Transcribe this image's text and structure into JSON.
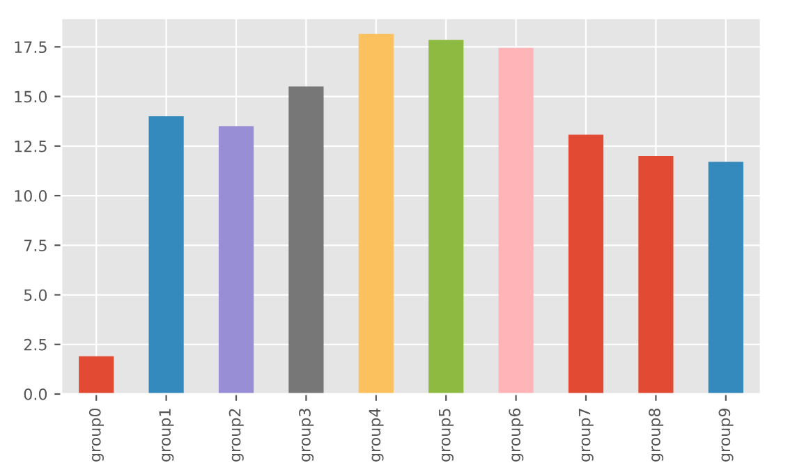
{
  "chart_data": {
    "type": "bar",
    "categories": [
      "group0",
      "group1",
      "group2",
      "group3",
      "group4",
      "group5",
      "group6",
      "group7",
      "group8",
      "group9"
    ],
    "values": [
      1.9,
      14.0,
      13.5,
      15.5,
      18.15,
      17.85,
      17.45,
      13.07,
      12.0,
      11.7
    ],
    "colors": [
      "#e24a33",
      "#348abd",
      "#988ed5",
      "#777777",
      "#fbc15e",
      "#8eba42",
      "#ffb5b8",
      "#e24a33",
      "#e24a33",
      "#348abd"
    ],
    "ylim": [
      0,
      18.95
    ],
    "yticks": [
      {
        "value": 0,
        "label": "0.0"
      },
      {
        "value": 2.5,
        "label": "2.5"
      },
      {
        "value": 5,
        "label": "5.0"
      },
      {
        "value": 7.5,
        "label": "7.5"
      },
      {
        "value": 10,
        "label": "10.0"
      },
      {
        "value": 12.5,
        "label": "12.5"
      },
      {
        "value": 15,
        "label": "15.0"
      },
      {
        "value": 17.5,
        "label": "17.5"
      }
    ],
    "grid": true
  }
}
